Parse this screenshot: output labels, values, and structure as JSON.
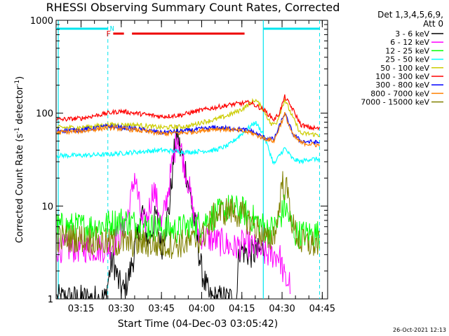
{
  "chart_data": {
    "type": "line",
    "title": "RHESSI Observing Summary Count Rates, Corrected",
    "xlabel": "Start Time (04-Dec-03 03:05:42)",
    "ylabel_main": "Corrected Count Rate (s",
    "ylabel_sup1": "-1",
    "ylabel_mid": " detector",
    "ylabel_sup2": "-1",
    "ylabel_end": ")",
    "y_scale": "log",
    "ylim": [
      1,
      1000
    ],
    "xlim": [
      "03:05:42",
      "04:47:00"
    ],
    "x_ticks": [
      "03:15",
      "03:30",
      "03:45",
      "04:00",
      "04:15",
      "04:30",
      "04:45"
    ],
    "y_ticks": [
      "1",
      "10",
      "100",
      "1000"
    ],
    "grid": false,
    "legend_header": [
      "Det 1,3,4,5,6,9,",
      "Att 0"
    ],
    "legend_placement": "right",
    "timestamp": "26-Oct-2021 12:13",
    "flag_labels": {
      "night": "N",
      "flare": "F"
    },
    "night_intervals": [
      [
        "03:05:42",
        "03:25:00"
      ],
      [
        "04:23:00",
        "04:44:00"
      ]
    ],
    "flare_bars": [
      [
        "03:27:00",
        "03:31:00"
      ],
      [
        "03:34:00",
        "04:16:00"
      ]
    ],
    "vertical_lines_solid": [
      "03:06:30",
      "04:23:00"
    ],
    "vertical_lines_dashed": [
      "03:25:00",
      "04:44:00"
    ],
    "series": [
      {
        "name": "3 - 6 keV",
        "color": "#000000",
        "kind": "low",
        "points": [
          [
            "03:06",
            1
          ],
          [
            "03:24",
            1
          ],
          [
            "03:26",
            2.2
          ],
          [
            "03:27",
            2.6
          ],
          [
            "03:29",
            1.5
          ],
          [
            "03:31",
            1.2
          ],
          [
            "03:33",
            1.8
          ],
          [
            "03:35",
            3.2
          ],
          [
            "03:38",
            9
          ],
          [
            "03:40",
            4
          ],
          [
            "03:43",
            8
          ],
          [
            "03:45",
            3.5
          ],
          [
            "03:48",
            10
          ],
          [
            "03:50",
            45
          ],
          [
            "03:51",
            55
          ],
          [
            "03:52",
            40
          ],
          [
            "03:54",
            25
          ],
          [
            "03:56",
            12
          ],
          [
            "03:58",
            5
          ],
          [
            "04:00",
            2
          ],
          [
            "04:03",
            1
          ],
          [
            "04:13",
            1
          ],
          [
            "04:14",
            3.5
          ],
          [
            "04:18",
            3
          ],
          [
            "04:21",
            3.2
          ],
          [
            "04:23",
            3.4
          ]
        ]
      },
      {
        "name": "6 - 12 keV",
        "color": "#ff00ff",
        "kind": "low",
        "points": [
          [
            "03:06",
            3.5
          ],
          [
            "03:24",
            3.5
          ],
          [
            "03:27",
            4
          ],
          [
            "03:30",
            5
          ],
          [
            "03:33",
            9
          ],
          [
            "03:35",
            22
          ],
          [
            "03:37",
            9
          ],
          [
            "03:38",
            6
          ],
          [
            "03:40",
            8
          ],
          [
            "03:42",
            16
          ],
          [
            "03:44",
            9
          ],
          [
            "03:45",
            6
          ],
          [
            "03:47",
            12
          ],
          [
            "03:49",
            28
          ],
          [
            "03:51",
            60
          ],
          [
            "03:53",
            33
          ],
          [
            "03:55",
            18
          ],
          [
            "03:57",
            8
          ],
          [
            "03:59",
            5
          ],
          [
            "04:02",
            4.5
          ],
          [
            "04:08",
            4
          ],
          [
            "04:12",
            3.5
          ],
          [
            "04:16",
            4
          ],
          [
            "04:20",
            3.5
          ],
          [
            "04:24",
            3
          ],
          [
            "04:29",
            3
          ],
          [
            "04:31",
            1.6
          ],
          [
            "04:33",
            1.5
          ]
        ]
      },
      {
        "name": "12 - 25 keV",
        "color": "#00ff00",
        "kind": "low",
        "points": [
          [
            "03:06",
            6
          ],
          [
            "03:20",
            6
          ],
          [
            "03:26",
            6.5
          ],
          [
            "03:30",
            7
          ],
          [
            "03:40",
            6
          ],
          [
            "03:50",
            5.5
          ],
          [
            "04:00",
            6.5
          ],
          [
            "04:05",
            8
          ],
          [
            "04:10",
            9.5
          ],
          [
            "04:15",
            9
          ],
          [
            "04:20",
            7
          ],
          [
            "04:25",
            5.5
          ],
          [
            "04:28",
            6
          ],
          [
            "04:31",
            10
          ],
          [
            "04:33",
            7
          ],
          [
            "04:35",
            5
          ],
          [
            "04:40",
            5
          ],
          [
            "04:44",
            5
          ]
        ]
      },
      {
        "name": "25 - 50 keV",
        "color": "#00ffff",
        "kind": "main",
        "points": [
          [
            "03:06",
            35
          ],
          [
            "03:15",
            35
          ],
          [
            "03:25",
            36
          ],
          [
            "03:35",
            38
          ],
          [
            "03:45",
            40
          ],
          [
            "03:55",
            38
          ],
          [
            "04:05",
            40
          ],
          [
            "04:10",
            45
          ],
          [
            "04:15",
            60
          ],
          [
            "04:20",
            80
          ],
          [
            "04:23",
            60
          ],
          [
            "04:27",
            28
          ],
          [
            "04:29",
            35
          ],
          [
            "04:31",
            42
          ],
          [
            "04:34",
            32
          ],
          [
            "04:37",
            30
          ],
          [
            "04:40",
            32
          ],
          [
            "04:44",
            32
          ]
        ]
      },
      {
        "name": "50 - 100 keV",
        "color": "#cccc00",
        "kind": "main",
        "points": [
          [
            "03:06",
            70
          ],
          [
            "03:15",
            70
          ],
          [
            "03:25",
            75
          ],
          [
            "03:35",
            75
          ],
          [
            "03:45",
            70
          ],
          [
            "03:55",
            72
          ],
          [
            "04:00",
            80
          ],
          [
            "04:05",
            85
          ],
          [
            "04:10",
            95
          ],
          [
            "04:15",
            110
          ],
          [
            "04:20",
            140
          ],
          [
            "04:23",
            110
          ],
          [
            "04:26",
            75
          ],
          [
            "04:28",
            80
          ],
          [
            "04:31",
            140
          ],
          [
            "04:34",
            90
          ],
          [
            "04:37",
            60
          ],
          [
            "04:40",
            60
          ],
          [
            "04:44",
            58
          ]
        ]
      },
      {
        "name": "100 - 300 keV",
        "color": "#ff0000",
        "kind": "main",
        "points": [
          [
            "03:06",
            85
          ],
          [
            "03:15",
            88
          ],
          [
            "03:25",
            100
          ],
          [
            "03:30",
            105
          ],
          [
            "03:35",
            100
          ],
          [
            "03:45",
            92
          ],
          [
            "03:52",
            95
          ],
          [
            "03:58",
            105
          ],
          [
            "04:05",
            115
          ],
          [
            "04:12",
            125
          ],
          [
            "04:18",
            130
          ],
          [
            "04:23",
            110
          ],
          [
            "04:27",
            85
          ],
          [
            "04:29",
            100
          ],
          [
            "04:31",
            150
          ],
          [
            "04:34",
            110
          ],
          [
            "04:37",
            75
          ],
          [
            "04:40",
            70
          ],
          [
            "04:44",
            68
          ]
        ]
      },
      {
        "name": "300 - 800 keV",
        "color": "#0000ff",
        "kind": "main",
        "points": [
          [
            "03:06",
            65
          ],
          [
            "03:15",
            66
          ],
          [
            "03:25",
            72
          ],
          [
            "03:35",
            68
          ],
          [
            "03:45",
            62
          ],
          [
            "03:55",
            65
          ],
          [
            "04:05",
            70
          ],
          [
            "04:12",
            68
          ],
          [
            "04:18",
            65
          ],
          [
            "04:23",
            55
          ],
          [
            "04:27",
            52
          ],
          [
            "04:31",
            100
          ],
          [
            "04:34",
            60
          ],
          [
            "04:37",
            50
          ],
          [
            "04:44",
            48
          ]
        ]
      },
      {
        "name": "800 - 7000 keV",
        "color": "#ff8000",
        "kind": "main",
        "points": [
          [
            "03:06",
            62
          ],
          [
            "03:15",
            64
          ],
          [
            "03:25",
            70
          ],
          [
            "03:35",
            66
          ],
          [
            "03:45",
            60
          ],
          [
            "03:55",
            62
          ],
          [
            "04:05",
            68
          ],
          [
            "04:12",
            66
          ],
          [
            "04:18",
            62
          ],
          [
            "04:23",
            54
          ],
          [
            "04:27",
            50
          ],
          [
            "04:31",
            98
          ],
          [
            "04:34",
            58
          ],
          [
            "04:37",
            48
          ],
          [
            "04:44",
            45
          ]
        ]
      },
      {
        "name": "7000 - 15000 keV",
        "color": "#808000",
        "kind": "low",
        "points": [
          [
            "03:06",
            4.5
          ],
          [
            "03:15",
            4.5
          ],
          [
            "03:25",
            4
          ],
          [
            "03:35",
            4
          ],
          [
            "03:45",
            3.8
          ],
          [
            "03:55",
            4
          ],
          [
            "04:00",
            4.5
          ],
          [
            "04:05",
            8
          ],
          [
            "04:10",
            9
          ],
          [
            "04:15",
            8
          ],
          [
            "04:20",
            6
          ],
          [
            "04:25",
            4
          ],
          [
            "04:28",
            6
          ],
          [
            "04:30",
            18
          ],
          [
            "04:32",
            14
          ],
          [
            "04:34",
            6
          ],
          [
            "04:37",
            4
          ],
          [
            "04:44",
            3.8
          ]
        ]
      }
    ]
  }
}
